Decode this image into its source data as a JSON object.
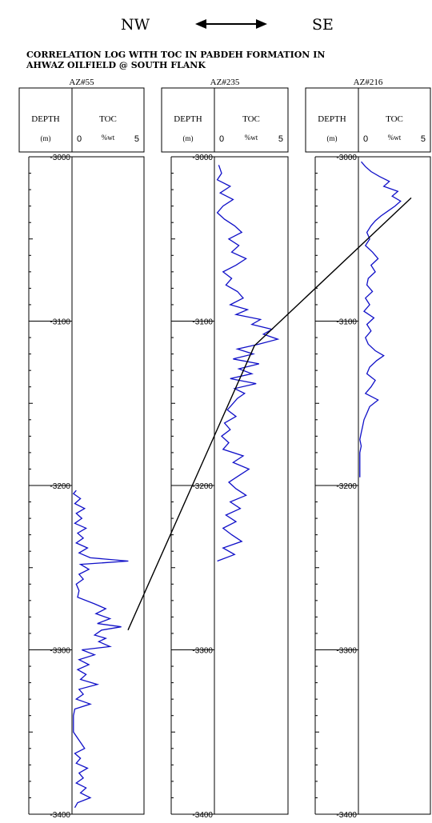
{
  "header": {
    "left_direction": "NW",
    "right_direction": "SE",
    "title_line1": "CORRELATION LOG WITH TOC IN  PABDEH  FORMATION IN",
    "title_line2": "AHWAZ OILFIELD @ SOUTH FLANK"
  },
  "chart_data": {
    "type": "line",
    "title": "CORRELATION LOG WITH TOC IN  PABDEH  FORMATION IN AHWAZ OILFIELD @ SOUTH FLANK",
    "depth_header": "DEPTH",
    "depth_unit": "(m)",
    "toc_header": "TOC",
    "toc_unit": "%wt",
    "toc_range": [
      0,
      5
    ],
    "depth_range": [
      -3000,
      -3400
    ],
    "depth_ticks": [
      -3000,
      -3100,
      -3200,
      -3300,
      -3400
    ],
    "wells": [
      {
        "name": "AZ#55",
        "depth": [
          -3203,
          -3205,
          -3208,
          -3211,
          -3214,
          -3217,
          -3220,
          -3223,
          -3226,
          -3229,
          -3232,
          -3235,
          -3238,
          -3241,
          -3244,
          -3246,
          -3248,
          -3251,
          -3254,
          -3257,
          -3260,
          -3264,
          -3268,
          -3272,
          -3275,
          -3278,
          -3281,
          -3284,
          -3286,
          -3288,
          -3291,
          -3293,
          -3295,
          -3298,
          -3300,
          -3303,
          -3306,
          -3309,
          -3312,
          -3315,
          -3318,
          -3321,
          -3324,
          -3327,
          -3330,
          -3333,
          -3336,
          -3340,
          -3350,
          -3360,
          -3363,
          -3366,
          -3369,
          -3372,
          -3375,
          -3378,
          -3381,
          -3384,
          -3387,
          -3390,
          -3393,
          -3396
        ],
        "toc": [
          0.3,
          0.1,
          0.6,
          0.2,
          0.9,
          0.3,
          0.7,
          0.2,
          1.0,
          0.4,
          0.8,
          0.3,
          1.1,
          0.5,
          1.3,
          4.0,
          0.6,
          1.2,
          0.5,
          0.8,
          0.3,
          0.5,
          0.4,
          1.6,
          2.4,
          1.7,
          2.7,
          1.8,
          3.5,
          2.1,
          1.6,
          2.4,
          1.9,
          2.7,
          0.7,
          1.6,
          0.5,
          1.2,
          0.4,
          1.0,
          0.6,
          1.8,
          0.5,
          0.8,
          0.3,
          1.3,
          0.2,
          0.1,
          0.1,
          0.9,
          0.2,
          0.6,
          0.3,
          1.1,
          0.5,
          0.8,
          0.3,
          1.0,
          0.6,
          1.3,
          0.4,
          0.2
        ]
      },
      {
        "name": "AZ#235",
        "depth": [
          -3005,
          -3010,
          -3014,
          -3018,
          -3022,
          -3026,
          -3030,
          -3034,
          -3038,
          -3042,
          -3046,
          -3050,
          -3054,
          -3058,
          -3062,
          -3066,
          -3070,
          -3074,
          -3078,
          -3082,
          -3086,
          -3090,
          -3093,
          -3096,
          -3099,
          -3102,
          -3105,
          -3108,
          -3111,
          -3114,
          -3117,
          -3120,
          -3123,
          -3126,
          -3129,
          -3132,
          -3135,
          -3138,
          -3141,
          -3144,
          -3147,
          -3150,
          -3154,
          -3158,
          -3162,
          -3166,
          -3170,
          -3174,
          -3178,
          -3182,
          -3186,
          -3190,
          -3194,
          -3198,
          -3202,
          -3206,
          -3210,
          -3214,
          -3218,
          -3222,
          -3226,
          -3230,
          -3234,
          -3238,
          -3242,
          -3246
        ],
        "toc": [
          0.3,
          0.5,
          0.2,
          1.1,
          0.4,
          1.3,
          0.6,
          0.2,
          0.7,
          1.4,
          1.9,
          1.0,
          1.7,
          1.2,
          2.2,
          1.5,
          0.6,
          1.2,
          0.8,
          1.6,
          2.0,
          1.1,
          2.3,
          1.5,
          3.2,
          2.6,
          4.0,
          3.4,
          4.4,
          3.1,
          1.6,
          2.7,
          1.3,
          3.1,
          1.7,
          2.6,
          1.1,
          2.9,
          1.4,
          2.1,
          1.6,
          1.3,
          0.9,
          1.5,
          0.7,
          1.1,
          0.5,
          1.0,
          0.6,
          2.0,
          1.3,
          2.4,
          1.7,
          1.0,
          1.5,
          2.2,
          1.1,
          1.8,
          0.8,
          1.5,
          0.6,
          1.2,
          1.9,
          0.6,
          1.4,
          0.2
        ]
      },
      {
        "name": "AZ#216",
        "depth": [
          -3003,
          -3006,
          -3009,
          -3012,
          -3015,
          -3018,
          -3021,
          -3024,
          -3027,
          -3030,
          -3033,
          -3036,
          -3039,
          -3042,
          -3046,
          -3050,
          -3054,
          -3058,
          -3062,
          -3066,
          -3070,
          -3074,
          -3078,
          -3082,
          -3086,
          -3090,
          -3094,
          -3098,
          -3102,
          -3106,
          -3110,
          -3114,
          -3118,
          -3121,
          -3124,
          -3128,
          -3132,
          -3136,
          -3140,
          -3144,
          -3148,
          -3152,
          -3156,
          -3160,
          -3164,
          -3168,
          -3172,
          -3176,
          -3180,
          -3190,
          -3195
        ],
        "toc": [
          0.2,
          0.5,
          0.9,
          1.5,
          2.2,
          1.8,
          2.8,
          2.4,
          3.0,
          2.6,
          2.1,
          1.6,
          1.2,
          0.9,
          0.6,
          0.8,
          0.5,
          1.0,
          1.4,
          0.9,
          1.2,
          0.7,
          0.6,
          1.0,
          0.5,
          0.8,
          0.4,
          1.1,
          0.6,
          0.9,
          0.5,
          0.7,
          1.2,
          1.8,
          1.3,
          0.8,
          0.6,
          1.2,
          0.9,
          0.5,
          1.4,
          0.8,
          0.6,
          0.4,
          0.3,
          0.2,
          0.1,
          0.2,
          0.1,
          0.1,
          0.1
        ]
      }
    ],
    "correlation_line": [
      {
        "well": "AZ#55",
        "depth": -3288
      },
      {
        "well": "AZ#235",
        "depth": -3115
      },
      {
        "well": "AZ#216",
        "depth": -3025
      }
    ]
  }
}
